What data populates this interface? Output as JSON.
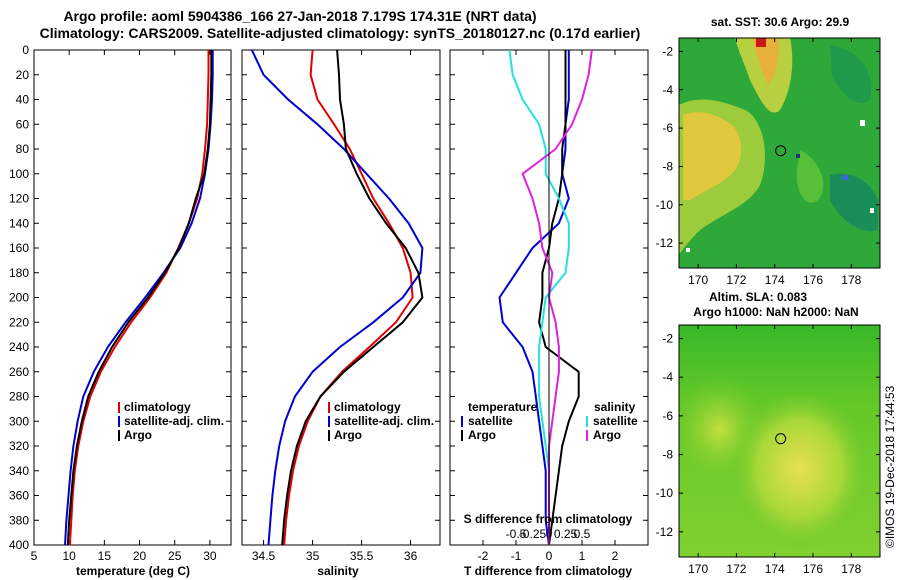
{
  "title": {
    "line1": "Argo profile: aoml 5904386_166 27-Jan-2018 7.179S 174.31E (NRT data)",
    "line2": "Climatology: CARS2009. Satellite-adjusted climatology: synTS_20180127.nc (0.17d earlier)"
  },
  "depth_ticks": [
    "0",
    "20",
    "40",
    "60",
    "80",
    "100",
    "120",
    "140",
    "160",
    "180",
    "200",
    "220",
    "240",
    "260",
    "280",
    "300",
    "320",
    "340",
    "360",
    "380",
    "400"
  ],
  "colors": {
    "climatology": "#e00000",
    "satellite": "#0000d0",
    "argo": "#000000",
    "argo_salt_diff": "#e020e0",
    "satellite_salt_diff": "#20e0e0"
  },
  "chart_data": [
    {
      "type": "line",
      "name": "temperature",
      "xlabel": "temperature (deg C)",
      "ylabel": "depth",
      "xlim": [
        5,
        33
      ],
      "ylim": [
        400,
        0
      ],
      "xticks": [
        5,
        10,
        15,
        20,
        25,
        30
      ],
      "legend": [
        "climatology",
        "satellite-adj. clim.",
        "Argo"
      ],
      "series": [
        {
          "name": "climatology",
          "color_key": "climatology",
          "x": [
            29.8,
            29.8,
            29.7,
            29.6,
            29.3,
            28.9,
            28.2,
            27.0,
            25.5,
            23.8,
            21.5,
            18.8,
            16.5,
            14.5,
            13.0,
            12.0,
            11.3,
            10.8,
            10.5,
            10.3,
            10.1
          ],
          "y": [
            0,
            20,
            40,
            60,
            80,
            100,
            120,
            140,
            160,
            180,
            200,
            220,
            240,
            260,
            280,
            300,
            320,
            340,
            360,
            380,
            400
          ]
        },
        {
          "name": "satellite-adj. clim.",
          "color_key": "satellite",
          "x": [
            30.4,
            30.4,
            30.3,
            30.1,
            29.8,
            29.3,
            28.6,
            27.4,
            25.8,
            23.4,
            20.8,
            18.0,
            15.5,
            13.5,
            12.0,
            11.2,
            10.6,
            10.2,
            9.9,
            9.6,
            9.4
          ],
          "y": [
            0,
            20,
            40,
            60,
            80,
            100,
            120,
            140,
            160,
            180,
            200,
            220,
            240,
            260,
            280,
            300,
            320,
            340,
            360,
            380,
            400
          ]
        },
        {
          "name": "Argo",
          "color_key": "argo",
          "x": [
            30.2,
            30.2,
            30.1,
            30.0,
            29.7,
            29.2,
            28.0,
            27.0,
            25.6,
            23.6,
            21.2,
            18.4,
            16.1,
            14.2,
            12.7,
            11.8,
            11.1,
            10.6,
            10.3,
            10.0,
            9.8
          ],
          "y": [
            0,
            20,
            40,
            60,
            80,
            100,
            120,
            140,
            160,
            180,
            200,
            220,
            240,
            260,
            280,
            300,
            320,
            340,
            360,
            380,
            400
          ]
        }
      ]
    },
    {
      "type": "line",
      "name": "salinity",
      "xlabel": "salinity",
      "ylabel": "depth",
      "xlim": [
        34.28,
        36.3
      ],
      "ylim": [
        400,
        0
      ],
      "xticks": [
        34.5,
        35,
        35.5,
        36
      ],
      "xticklabels": [
        "34.5",
        "35",
        "35.5",
        "36"
      ],
      "legend": [
        "climatology",
        "satellite-adj. clim.",
        "Argo"
      ],
      "series": [
        {
          "name": "climatology",
          "color_key": "climatology",
          "x": [
            35.0,
            34.98,
            35.05,
            35.22,
            35.38,
            35.5,
            35.62,
            35.78,
            35.92,
            36.0,
            36.02,
            35.85,
            35.58,
            35.3,
            35.08,
            34.95,
            34.86,
            34.8,
            34.76,
            34.73,
            34.71
          ],
          "y": [
            0,
            20,
            40,
            60,
            80,
            100,
            120,
            140,
            160,
            180,
            200,
            220,
            240,
            260,
            280,
            300,
            320,
            340,
            360,
            380,
            400
          ]
        },
        {
          "name": "satellite-adj. clim.",
          "color_key": "satellite",
          "x": [
            34.38,
            34.5,
            34.75,
            35.05,
            35.32,
            35.55,
            35.78,
            35.98,
            36.12,
            36.1,
            35.92,
            35.62,
            35.28,
            35.0,
            34.82,
            34.72,
            34.66,
            34.62,
            34.59,
            34.57,
            34.55
          ],
          "y": [
            0,
            20,
            40,
            60,
            80,
            100,
            120,
            140,
            160,
            180,
            200,
            220,
            240,
            260,
            280,
            300,
            320,
            340,
            360,
            380,
            400
          ]
        },
        {
          "name": "Argo",
          "color_key": "argo",
          "x": [
            35.25,
            35.27,
            35.28,
            35.32,
            35.34,
            35.45,
            35.58,
            35.75,
            35.95,
            36.08,
            36.12,
            35.92,
            35.62,
            35.32,
            35.08,
            34.93,
            34.84,
            34.78,
            34.74,
            34.71,
            34.69
          ],
          "y": [
            0,
            20,
            40,
            60,
            80,
            100,
            120,
            140,
            160,
            180,
            200,
            220,
            240,
            260,
            280,
            300,
            320,
            340,
            360,
            380,
            400
          ]
        }
      ]
    },
    {
      "type": "line",
      "name": "difference from climatology",
      "xlabel": "T difference from climatology",
      "xlabel2": "S difference from climatology",
      "xlim": [
        -3,
        3
      ],
      "ylim": [
        400,
        0
      ],
      "xticks": [
        -2,
        -1,
        0,
        1,
        2
      ],
      "xticklabels": [
        "-2",
        "-1",
        "0",
        "1",
        "2"
      ],
      "s_xticks": [
        -1.0,
        -0.5,
        0,
        0.5,
        1.0
      ],
      "s_xticklabels": [
        "-0.5",
        "-0.25",
        "0",
        "0.25",
        "0.5"
      ],
      "legend_temperature_heading": "temperature",
      "legend_salinity_heading": "salinity",
      "legend_temperature": [
        "satellite",
        "Argo"
      ],
      "legend_salinity": [
        "satellite",
        "Argo"
      ],
      "series": [
        {
          "name": "temperature satellite",
          "color_key": "satellite",
          "x": [
            0.6,
            0.6,
            0.6,
            0.5,
            0.5,
            0.4,
            0.6,
            0.3,
            -0.5,
            -1.0,
            -1.5,
            -1.4,
            -0.8,
            -0.5,
            -0.4,
            -0.3,
            -0.2,
            -0.1,
            -0.1,
            -0.1,
            0.0
          ],
          "y": [
            0,
            20,
            40,
            60,
            80,
            100,
            120,
            140,
            160,
            180,
            200,
            220,
            240,
            260,
            280,
            300,
            320,
            340,
            360,
            380,
            400
          ]
        },
        {
          "name": "temperature Argo",
          "color_key": "argo",
          "x": [
            0.5,
            0.5,
            0.5,
            0.5,
            0.4,
            0.4,
            0.3,
            0.1,
            0.0,
            -0.2,
            -0.2,
            -0.3,
            -0.1,
            0.9,
            0.9,
            0.6,
            0.4,
            0.3,
            0.2,
            0.1,
            0.0
          ],
          "y": [
            0,
            20,
            40,
            60,
            80,
            100,
            120,
            140,
            160,
            180,
            200,
            220,
            240,
            260,
            280,
            300,
            320,
            340,
            360,
            380,
            400
          ]
        },
        {
          "name": "salinity satellite",
          "color_key": "satellite_salt_diff",
          "x": [
            -1.2,
            -1.1,
            -0.8,
            -0.3,
            -0.1,
            -0.1,
            0.3,
            0.6,
            0.6,
            0.5,
            -0.1,
            -0.2,
            -0.3,
            -0.3,
            -0.3,
            -0.2,
            -0.1,
            0.0,
            0.0,
            0.0,
            0.0
          ],
          "y": [
            0,
            20,
            40,
            60,
            80,
            100,
            120,
            140,
            160,
            180,
            200,
            220,
            240,
            260,
            280,
            300,
            320,
            340,
            360,
            380,
            400
          ]
        },
        {
          "name": "salinity Argo",
          "color_key": "argo_salt_diff",
          "x": [
            1.3,
            1.2,
            1.0,
            0.7,
            0.2,
            -0.8,
            -0.5,
            -0.3,
            -0.2,
            0.1,
            0.0,
            0.2,
            0.3,
            0.3,
            0.2,
            0.1,
            0.0,
            0.0,
            0.0,
            0.0,
            0.0
          ],
          "y": [
            0,
            20,
            40,
            60,
            80,
            100,
            120,
            140,
            160,
            180,
            200,
            220,
            240,
            260,
            280,
            300,
            320,
            340,
            360,
            380,
            400
          ]
        }
      ]
    },
    {
      "type": "heatmap",
      "name": "sst map",
      "title": "sat. SST: 30.6 Argo: 29.9",
      "xticks": [
        170,
        172,
        174,
        176,
        178
      ],
      "yticks": [
        -2,
        -4,
        -6,
        -8,
        -10,
        -12
      ],
      "xlim": [
        169,
        179.5
      ],
      "ylim": [
        -13.3,
        -1.3
      ],
      "marker": {
        "lon": 174.31,
        "lat": -7.18
      }
    },
    {
      "type": "heatmap",
      "name": "sla map",
      "title": "Altim. SLA: 0.083",
      "subtitle": "Argo h1000: NaN h2000: NaN",
      "xticks": [
        170,
        172,
        174,
        176,
        178
      ],
      "yticks": [
        -2,
        -4,
        -6,
        -8,
        -10,
        -12
      ],
      "xlim": [
        169,
        179.5
      ],
      "ylim": [
        -13.3,
        -1.3
      ],
      "marker": {
        "lon": 174.31,
        "lat": -7.18
      }
    }
  ],
  "credit": "©IMOS 19-Dec-2018 17:44:53"
}
